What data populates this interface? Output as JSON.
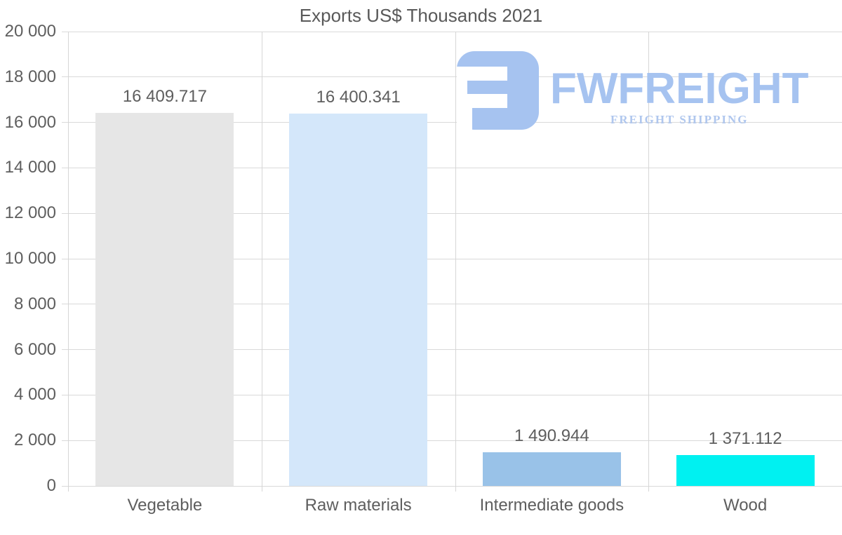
{
  "chart_data": {
    "type": "bar",
    "title": "Exports US$ Thousands 2021",
    "categories": [
      "Vegetable",
      "Raw materials",
      "Intermediate goods",
      "Wood"
    ],
    "values": [
      16409.717,
      16400.341,
      1490.944,
      1371.112
    ],
    "value_labels": [
      "16 409.717",
      "16 400.341",
      "1 490.944",
      "1 371.112"
    ],
    "bar_colors": [
      "#e6e6e6",
      "#d4e7fa",
      "#99c2e8",
      "#00f1f1"
    ],
    "xlabel": "",
    "ylabel": "",
    "ylim": [
      0,
      20000
    ],
    "ytick_step": 2000,
    "ytick_labels": [
      "0",
      "2 000",
      "4 000",
      "6 000",
      "8 000",
      "10 000",
      "12 000",
      "14 000",
      "16 000",
      "18 000",
      "20 000"
    ],
    "grid": true,
    "legend": "none"
  },
  "watermark": {
    "brand": "FWFREIGHT",
    "tagline": "FREIGHT SHIPPING",
    "icon_color": "#a6c3f0",
    "brand_color": "#a6c3f0",
    "tagline_color": "#b0c7ee"
  },
  "colors": {
    "background": "#ffffff",
    "grid": "#d9d9d9",
    "axis": "#d0d0d0",
    "text": "#5e5e5e"
  }
}
